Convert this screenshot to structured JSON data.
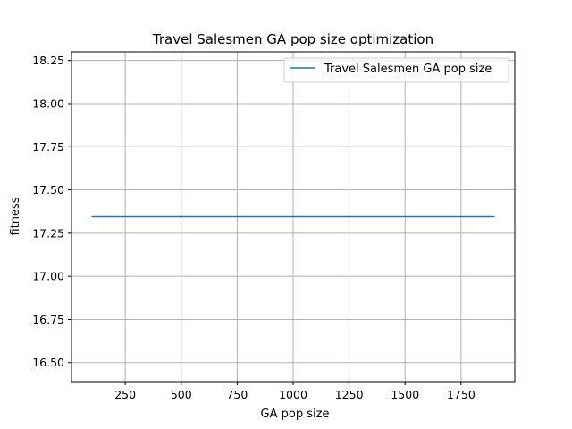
{
  "chart_data": {
    "type": "line",
    "title": "Travel Salesmen GA pop size optimization",
    "xlabel": "GA pop size",
    "ylabel": "fitness",
    "xlim": [
      10,
      1990
    ],
    "ylim": [
      16.39,
      18.3
    ],
    "xticks": [
      250,
      500,
      750,
      1000,
      1250,
      1500,
      1750
    ],
    "xtick_labels": [
      "250",
      "500",
      "750",
      "1000",
      "1250",
      "1500",
      "1750"
    ],
    "yticks": [
      16.5,
      16.75,
      17.0,
      17.25,
      17.5,
      17.75,
      18.0,
      18.25
    ],
    "ytick_labels": [
      "16.50",
      "16.75",
      "17.00",
      "17.25",
      "17.50",
      "17.75",
      "18.00",
      "18.25"
    ],
    "grid": true,
    "legend_position": "top-right",
    "series": [
      {
        "name": "Travel Salesmen GA pop size",
        "color": "#1f77b4",
        "x": [
          100,
          1900
        ],
        "y": [
          17.345,
          17.345
        ]
      }
    ]
  }
}
